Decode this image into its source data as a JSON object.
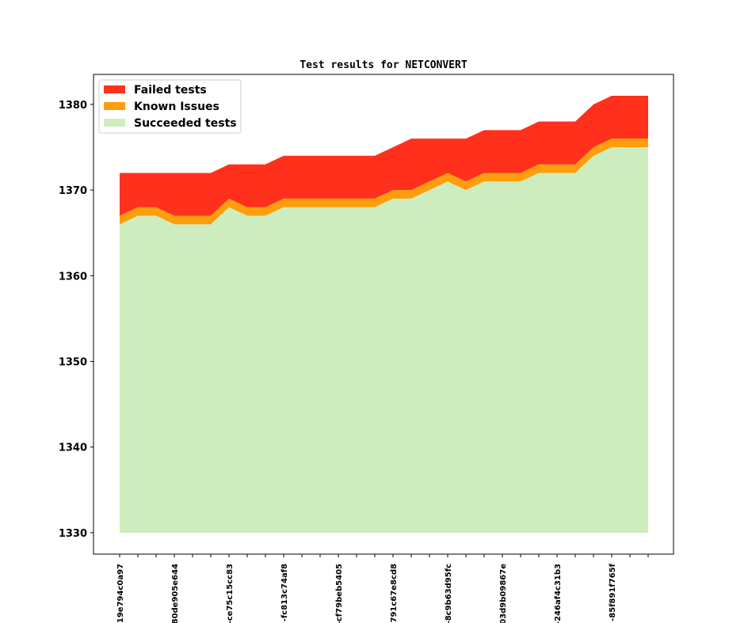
{
  "chart_data": {
    "type": "area",
    "stacked": true,
    "title": "Test results for NETCONVERT",
    "xlabel": "",
    "ylabel": "",
    "ylim": [
      1327.5,
      1383.5
    ],
    "y_ticks": [
      1330,
      1340,
      1350,
      1360,
      1370,
      1380
    ],
    "baseline": 1330,
    "x_count": 30,
    "x_tick_labels": [
      "-19e794c0a97",
      "",
      "",
      "80de905e644",
      "",
      "",
      "-ce75c15cc83",
      "",
      "",
      "-fc813c74af8",
      "",
      "",
      "-cf79beb5405",
      "",
      "",
      "-791c67e8cd8",
      "",
      "",
      "-8c9b63d95fc",
      "",
      "",
      "03d9b09867e",
      "",
      "",
      "-246af4c31b3",
      "",
      "",
      "-85f891f765f",
      "",
      ""
    ],
    "legend_position": "upper-left",
    "series": [
      {
        "name": "Succeeded tests",
        "color": "#ceedbf",
        "totals": [
          1366,
          1367,
          1367,
          1366,
          1366,
          1366,
          1368,
          1367,
          1367,
          1368,
          1368,
          1368,
          1368,
          1368,
          1368,
          1369,
          1369,
          1370,
          1371,
          1370,
          1371,
          1371,
          1371,
          1372,
          1372,
          1372,
          1374,
          1375,
          1375,
          1375
        ]
      },
      {
        "name": "Known Issues",
        "color": "#ff9e0c",
        "totals": [
          1367,
          1368,
          1368,
          1367,
          1367,
          1367,
          1369,
          1368,
          1368,
          1369,
          1369,
          1369,
          1369,
          1369,
          1369,
          1370,
          1370,
          1371,
          1372,
          1371,
          1372,
          1372,
          1372,
          1373,
          1373,
          1373,
          1375,
          1376,
          1376,
          1376
        ]
      },
      {
        "name": "Failed tests",
        "color": "#ff301c",
        "totals": [
          1372,
          1372,
          1372,
          1372,
          1372,
          1372,
          1373,
          1373,
          1373,
          1374,
          1374,
          1374,
          1374,
          1374,
          1374,
          1375,
          1376,
          1376,
          1376,
          1376,
          1377,
          1377,
          1377,
          1378,
          1378,
          1378,
          1380,
          1381,
          1381,
          1381
        ]
      }
    ],
    "legend_order": [
      "Failed tests",
      "Known Issues",
      "Succeeded tests"
    ]
  }
}
